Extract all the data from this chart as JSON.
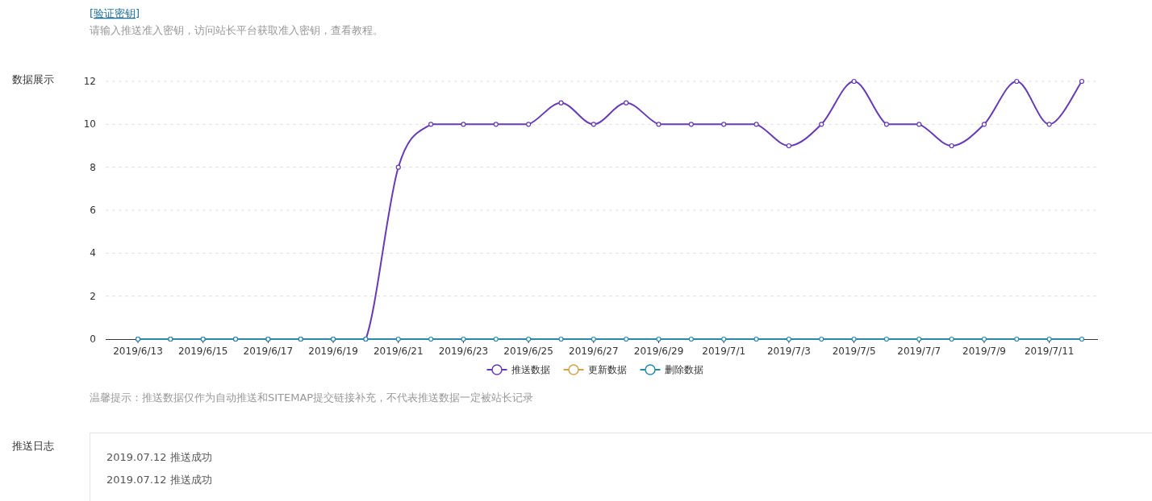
{
  "chart_data": {
    "type": "line",
    "categories": [
      "2019/6/13",
      null,
      "2019/6/15",
      null,
      "2019/6/17",
      null,
      "2019/6/19",
      null,
      "2019/6/21",
      null,
      "2019/6/23",
      null,
      "2019/6/25",
      null,
      "2019/6/27",
      null,
      "2019/6/29",
      null,
      "2019/7/1",
      null,
      "2019/7/3",
      null,
      "2019/7/5",
      null,
      "2019/7/7",
      null,
      "2019/7/9",
      null,
      "2019/7/11",
      null
    ],
    "series": [
      {
        "name": "推送数据",
        "color": "#673ab7",
        "values": [
          0,
          0,
          0,
          0,
          0,
          0,
          0,
          0,
          8,
          10,
          10,
          10,
          10,
          11,
          10,
          11,
          10,
          10,
          10,
          10,
          9,
          10,
          12,
          10,
          10,
          9,
          10,
          12,
          10,
          12
        ]
      },
      {
        "name": "更新数据",
        "color": "#d4a44c",
        "values": [
          null,
          null,
          null,
          null,
          null,
          null,
          null,
          null,
          null,
          null,
          null,
          null,
          null,
          null,
          null,
          null,
          null,
          null,
          null,
          null,
          null,
          null,
          null,
          null,
          null,
          null,
          null,
          null,
          null,
          null
        ]
      },
      {
        "name": "删除数据",
        "color": "#2a88a8",
        "values": [
          0,
          0,
          0,
          0,
          0,
          0,
          0,
          0,
          0,
          0,
          0,
          0,
          0,
          0,
          0,
          0,
          0,
          0,
          0,
          0,
          0,
          0,
          0,
          0,
          0,
          0,
          0,
          0,
          0,
          0
        ]
      }
    ],
    "ylim": [
      0,
      12
    ],
    "yticks": [
      0,
      2,
      4,
      6,
      8,
      10,
      12
    ],
    "grid": "y",
    "legend": "bottom",
    "marker": "circle",
    "line_style": "solid",
    "annotations": [
      "[验证密钥]",
      "请输入推送准入密钥，访问站长平台获取准入密钥，查看教程。",
      "数据展示",
      "温馨提示：推送数据仅作为自动推送和SITEMAP提交链接补充，不代表推送数据一定被站长记录",
      "推送日志",
      "2019.07.12 推送成功",
      "2019.07.12 推送成功"
    ]
  }
}
